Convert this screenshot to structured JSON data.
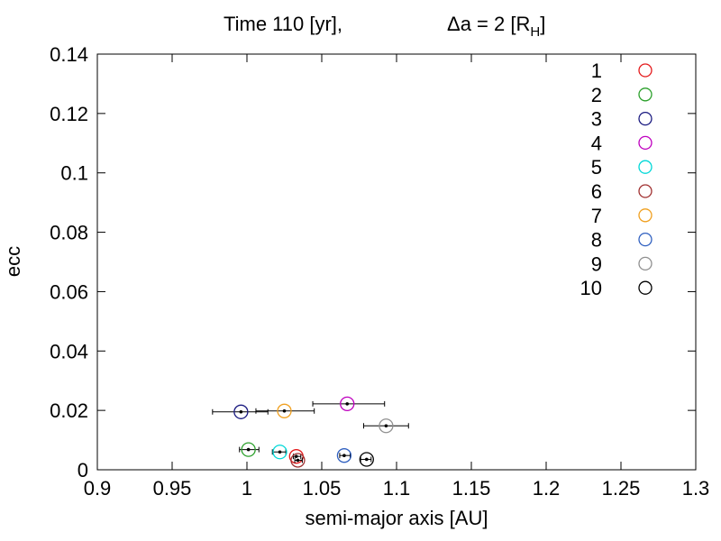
{
  "chart_data": {
    "type": "scatter",
    "title_left": "Time 110 [yr],",
    "title_right": "Δa = 2 [R",
    "title_right_sub": "H",
    "title_right_end": "]",
    "xlabel": "semi-major axis [AU]",
    "ylabel": "ecc",
    "xlim": [
      0.9,
      1.3
    ],
    "ylim": [
      0,
      0.14
    ],
    "xticks": [
      0.9,
      0.95,
      1.0,
      1.05,
      1.1,
      1.15,
      1.2,
      1.25,
      1.3
    ],
    "xtick_labels": [
      "0.9",
      "0.95",
      "1",
      "1.05",
      "1.1",
      "1.15",
      "1.2",
      "1.25",
      "1.3"
    ],
    "yticks": [
      0,
      0.02,
      0.04,
      0.06,
      0.08,
      0.1,
      0.12,
      0.14
    ],
    "ytick_labels": [
      "0",
      "0.02",
      "0.04",
      "0.06",
      "0.08",
      "0.1",
      "0.12",
      "0.14"
    ],
    "grid": false,
    "legend_position": "top-right",
    "series": [
      {
        "name": "1",
        "color": "#e41a1c",
        "x": 1.033,
        "y": 0.0045,
        "xerr": [
          1.031,
          1.036
        ]
      },
      {
        "name": "2",
        "color": "#2ca02c",
        "x": 1.001,
        "y": 0.0068,
        "xerr": [
          0.995,
          1.008
        ]
      },
      {
        "name": "3",
        "color": "#1a1a80",
        "x": 0.996,
        "y": 0.0195,
        "xerr": [
          0.977,
          1.014
        ]
      },
      {
        "name": "4",
        "color": "#bf00bf",
        "x": 1.067,
        "y": 0.0222,
        "xerr": [
          1.044,
          1.092
        ]
      },
      {
        "name": "5",
        "color": "#00d8d8",
        "x": 1.022,
        "y": 0.006,
        "xerr": [
          1.017,
          1.026
        ]
      },
      {
        "name": "6",
        "color": "#a03030",
        "x": 1.034,
        "y": 0.0032,
        "xerr": [
          1.032,
          1.037
        ]
      },
      {
        "name": "7",
        "color": "#f0a020",
        "x": 1.025,
        "y": 0.0198,
        "xerr": [
          1.006,
          1.045
        ]
      },
      {
        "name": "8",
        "color": "#3060c0",
        "x": 1.065,
        "y": 0.0048,
        "xerr": [
          1.062,
          1.069
        ]
      },
      {
        "name": "9",
        "color": "#909090",
        "x": 1.093,
        "y": 0.0148,
        "xerr": [
          1.078,
          1.108
        ]
      },
      {
        "name": "10",
        "color": "#000000",
        "x": 1.08,
        "y": 0.0035,
        "xerr": [
          1.076,
          1.083
        ]
      }
    ]
  }
}
